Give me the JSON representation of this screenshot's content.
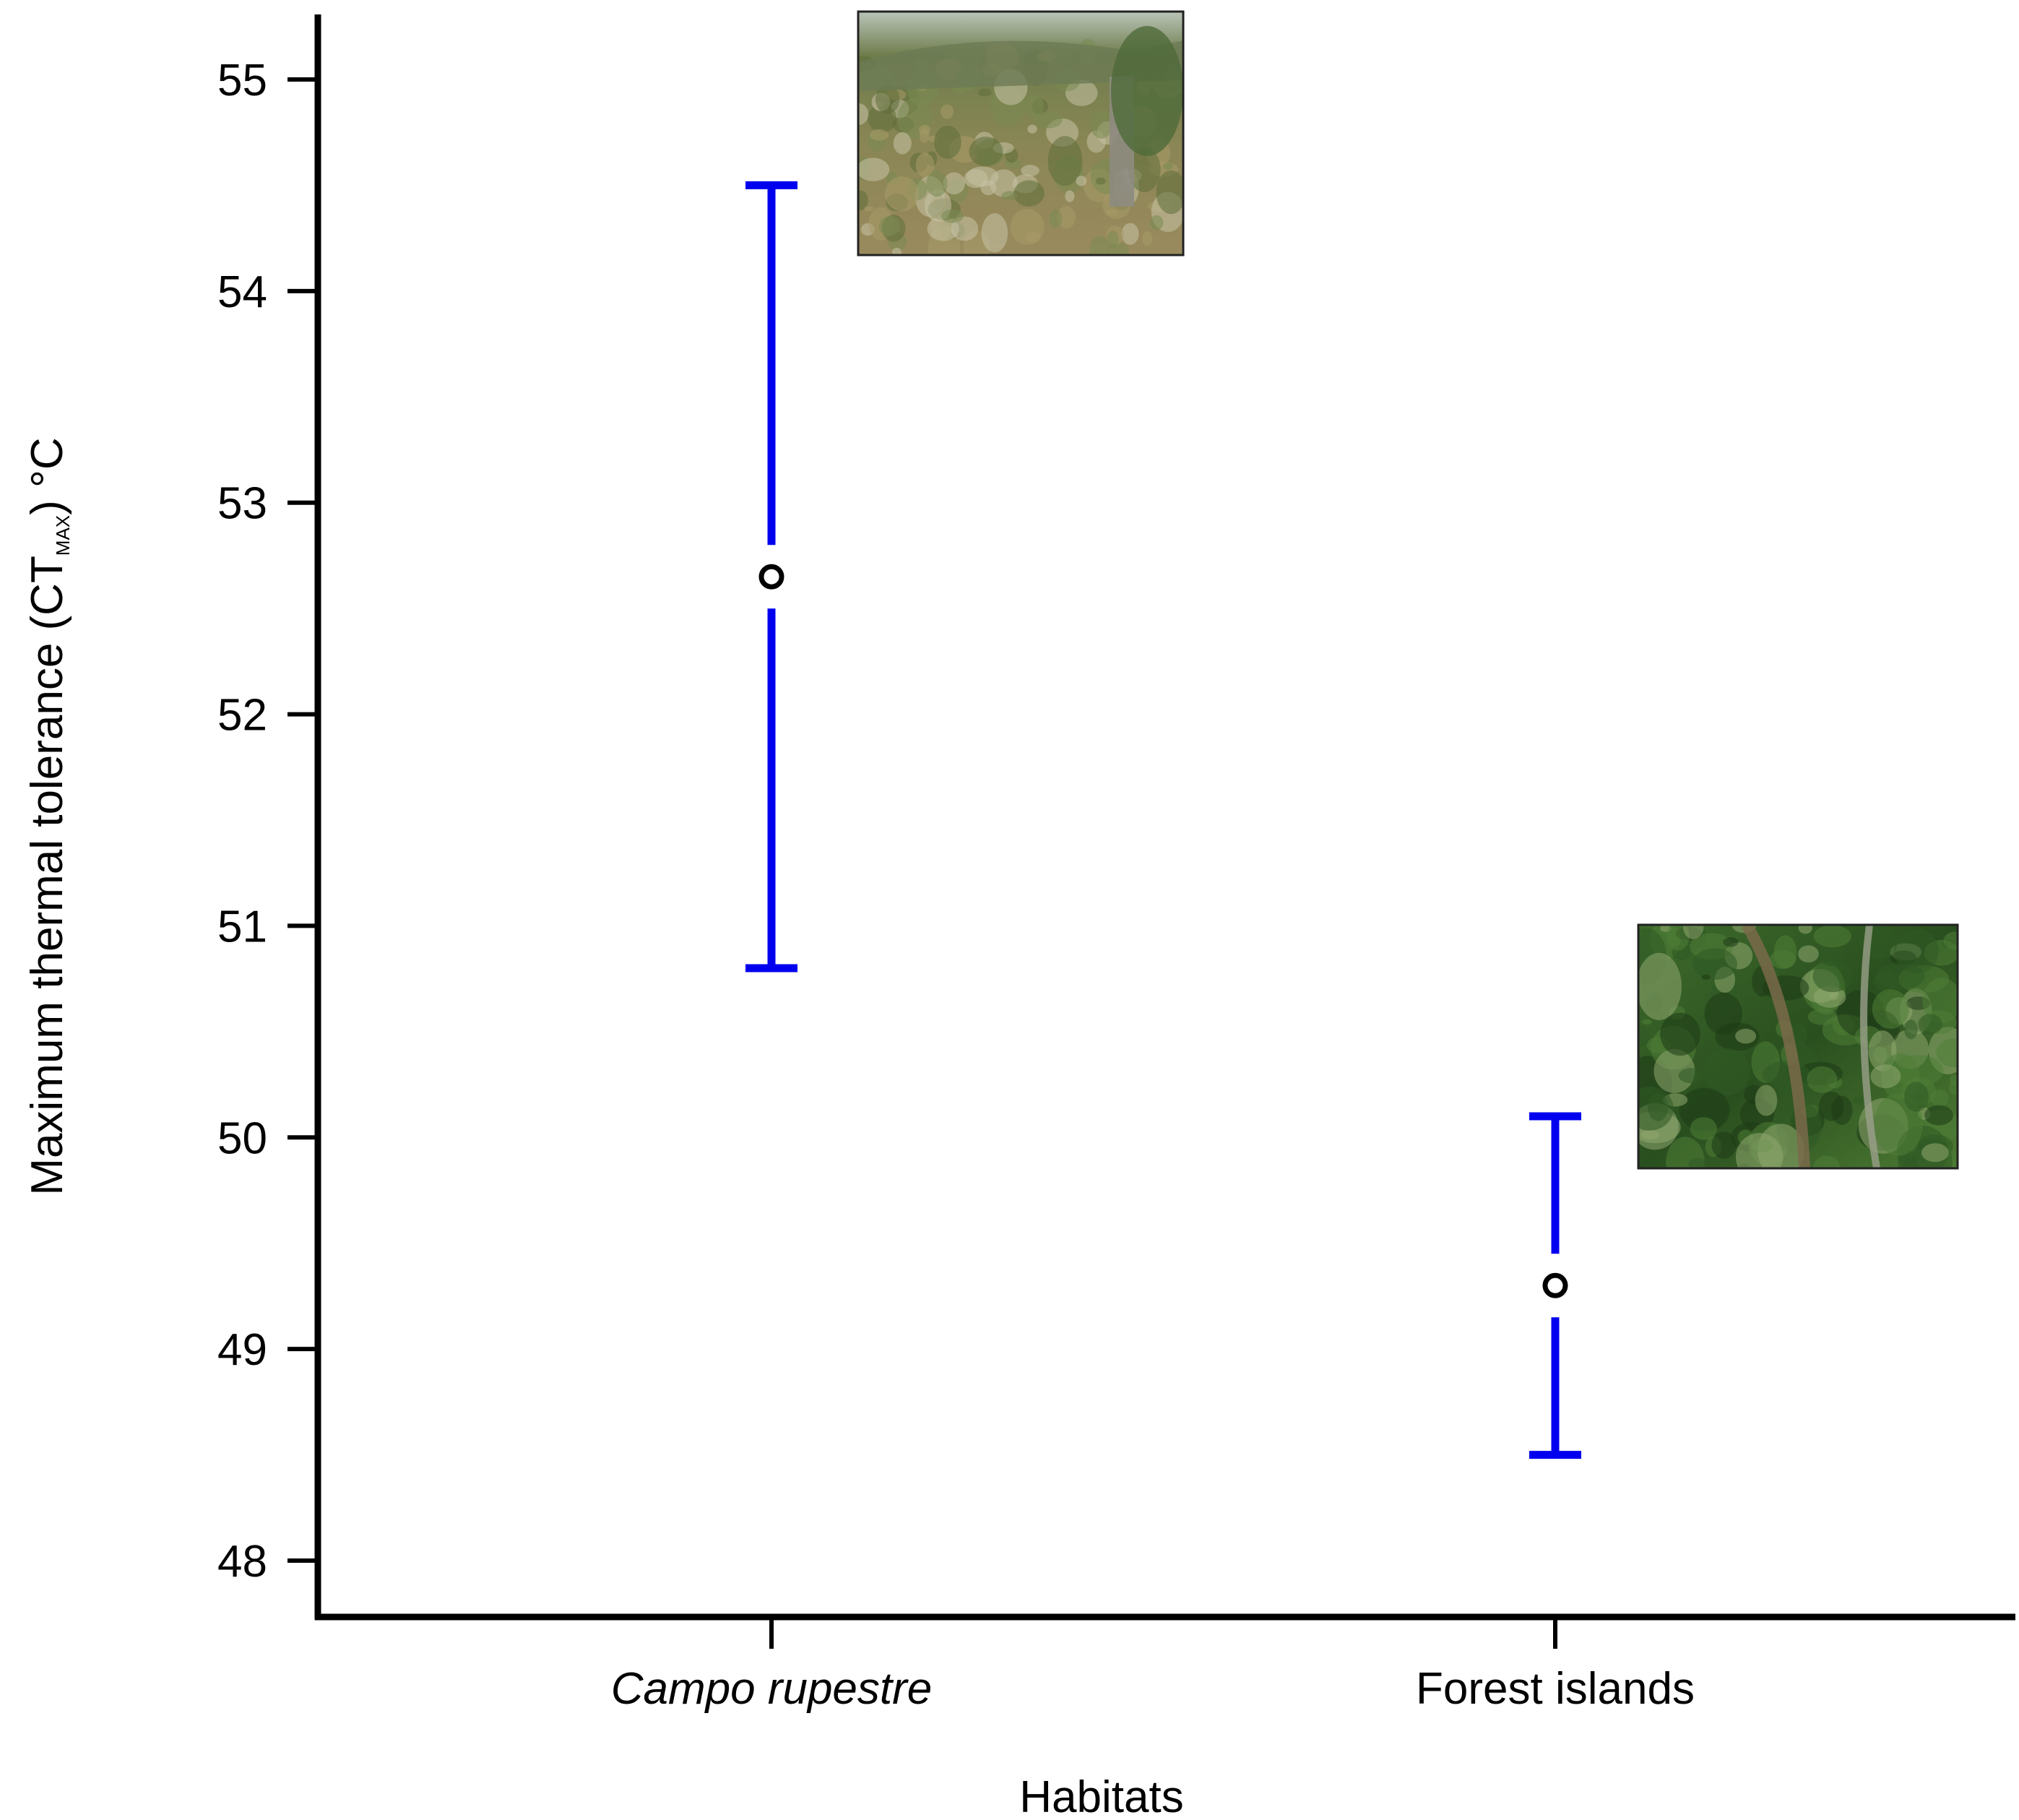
{
  "chart_data": {
    "type": "scatter",
    "title": "",
    "xlabel": "Habitats",
    "ylabel": {
      "main": "Maximum thermal tolerance (CT",
      "subscript": "MAX",
      "unit": ") °C"
    },
    "categories": [
      {
        "text": "Campo rupestre",
        "italic": true
      },
      {
        "text": "Forest islands",
        "italic": false
      }
    ],
    "ylim": [
      47.6,
      55.3
    ],
    "yticks": [
      "48",
      "49",
      "50",
      "51",
      "52",
      "53",
      "54",
      "55"
    ],
    "series": [
      {
        "points": [
          {
            "category": 0,
            "mean": 52.65,
            "lower": 50.8,
            "upper": 54.5
          },
          {
            "category": 1,
            "mean": 49.3,
            "lower": 48.5,
            "upper": 50.1
          }
        ]
      }
    ],
    "error_bar_color": "#0000ee",
    "marker_style": "open-circle",
    "grid": false,
    "legend": "none",
    "photos": [
      {
        "category": 0,
        "subject": "grassland-photo",
        "colors": [
          "#7a8a52",
          "#a89a68",
          "#5e6e3a",
          "#c7c2a6"
        ]
      },
      {
        "category": 1,
        "subject": "forest-photo",
        "colors": [
          "#2f5a24",
          "#4f7d36",
          "#1e3a16",
          "#8fa870"
        ]
      }
    ]
  }
}
